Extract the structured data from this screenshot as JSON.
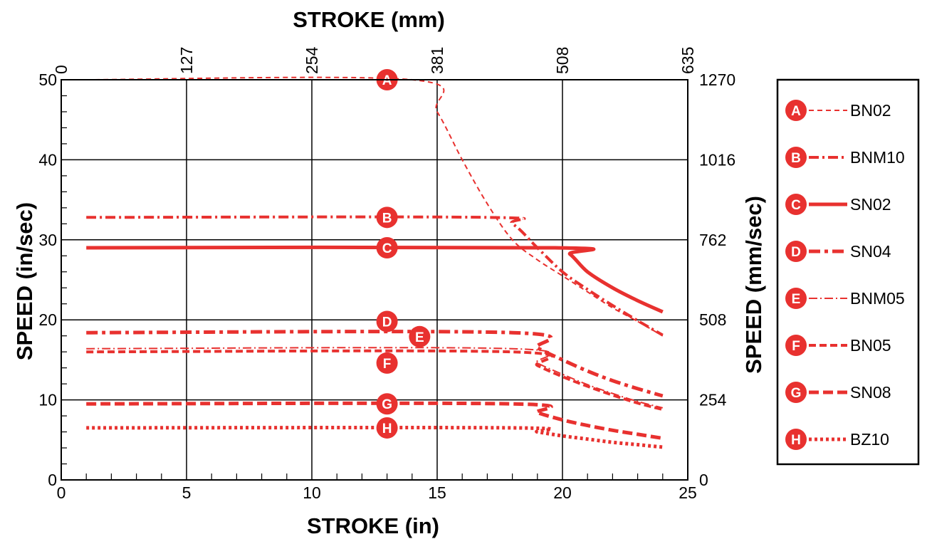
{
  "chart_data": {
    "type": "line",
    "title": "",
    "xlabel_bottom": "STROKE (in)",
    "xlabel_top": "STROKE (mm)",
    "ylabel_left": "SPEED (in/sec)",
    "ylabel_right": "SPEED (mm/sec)",
    "xlim": [
      0,
      25
    ],
    "ylim": [
      0,
      50
    ],
    "x_ticks": [
      "0",
      "5",
      "10",
      "15",
      "20",
      "25"
    ],
    "y_ticks": [
      "0",
      "10",
      "20",
      "30",
      "40",
      "50"
    ],
    "x_top_ticks": [
      "0",
      "127",
      "254",
      "381",
      "508",
      "635"
    ],
    "y_right_ticks": [
      "0",
      "254",
      "508",
      "762",
      "1016",
      "1270"
    ],
    "grid": true,
    "legend_position": "right",
    "series_color": "#e8312f",
    "series": [
      {
        "id": "A",
        "name": "BN02",
        "style": "thin-dashed",
        "points": [
          [
            1,
            50
          ],
          [
            14,
            50
          ],
          [
            15,
            46
          ],
          [
            16,
            40
          ],
          [
            17,
            34.5
          ],
          [
            18,
            30
          ],
          [
            19,
            27.5
          ],
          [
            20,
            25.5
          ],
          [
            21,
            23.5
          ],
          [
            22,
            21.5
          ],
          [
            23,
            19.8
          ],
          [
            24,
            18
          ]
        ],
        "label_at": [
          13,
          50
        ]
      },
      {
        "id": "B",
        "name": "BNM10",
        "style": "dash-dot",
        "points": [
          [
            1,
            32.8
          ],
          [
            17,
            32.8
          ],
          [
            18,
            32
          ],
          [
            19,
            29
          ],
          [
            20,
            26
          ],
          [
            21,
            23.8
          ],
          [
            22,
            21.8
          ],
          [
            23,
            19.9
          ],
          [
            24,
            18.1
          ]
        ],
        "label_at": [
          13,
          32.8
        ]
      },
      {
        "id": "C",
        "name": "SN02",
        "style": "solid",
        "points": [
          [
            1,
            29
          ],
          [
            19.7,
            29
          ],
          [
            20.3,
            28.2
          ],
          [
            21,
            26
          ],
          [
            22,
            24
          ],
          [
            23,
            22.4
          ],
          [
            24,
            21
          ]
        ],
        "label_at": [
          13,
          29
        ]
      },
      {
        "id": "D",
        "name": "SN04",
        "style": "dash-dot-thick",
        "points": [
          [
            1,
            18.4
          ],
          [
            18,
            18.4
          ],
          [
            19,
            16.5
          ],
          [
            20,
            15
          ],
          [
            21,
            13.6
          ],
          [
            22,
            12.4
          ],
          [
            23,
            11.4
          ],
          [
            24,
            10.5
          ]
        ],
        "label_at": [
          13,
          19.8
        ]
      },
      {
        "id": "E",
        "name": "BNM05",
        "style": "thin-dash-dot",
        "points": [
          [
            1,
            16.4
          ],
          [
            18,
            16.4
          ],
          [
            19,
            14.6
          ],
          [
            20,
            13.2
          ],
          [
            21,
            11.9
          ],
          [
            22,
            10.8
          ],
          [
            23,
            9.8
          ],
          [
            24,
            9
          ]
        ],
        "label_at": [
          14.3,
          17.9
        ]
      },
      {
        "id": "F",
        "name": "BN05",
        "style": "dashed",
        "points": [
          [
            1,
            16
          ],
          [
            18,
            16
          ],
          [
            19,
            14.3
          ],
          [
            20,
            12.9
          ],
          [
            21,
            11.7
          ],
          [
            22,
            10.6
          ],
          [
            23,
            9.6
          ],
          [
            24,
            8.8
          ]
        ],
        "label_at": [
          13,
          14.6
        ]
      },
      {
        "id": "G",
        "name": "SN08",
        "style": "thick-dashed",
        "points": [
          [
            1,
            9.5
          ],
          [
            18,
            9.5
          ],
          [
            19,
            8.4
          ],
          [
            20,
            7.5
          ],
          [
            21,
            6.8
          ],
          [
            22,
            6.2
          ],
          [
            23,
            5.7
          ],
          [
            24,
            5.2
          ]
        ],
        "label_at": [
          13,
          9.5
        ]
      },
      {
        "id": "H",
        "name": "BZ10",
        "style": "dotted",
        "points": [
          [
            1,
            6.5
          ],
          [
            18,
            6.5
          ],
          [
            19,
            6
          ],
          [
            20,
            5.5
          ],
          [
            21,
            5.1
          ],
          [
            22,
            4.7
          ],
          [
            23,
            4.4
          ],
          [
            24,
            4.1
          ]
        ],
        "label_at": [
          13,
          6.5
        ]
      }
    ]
  }
}
